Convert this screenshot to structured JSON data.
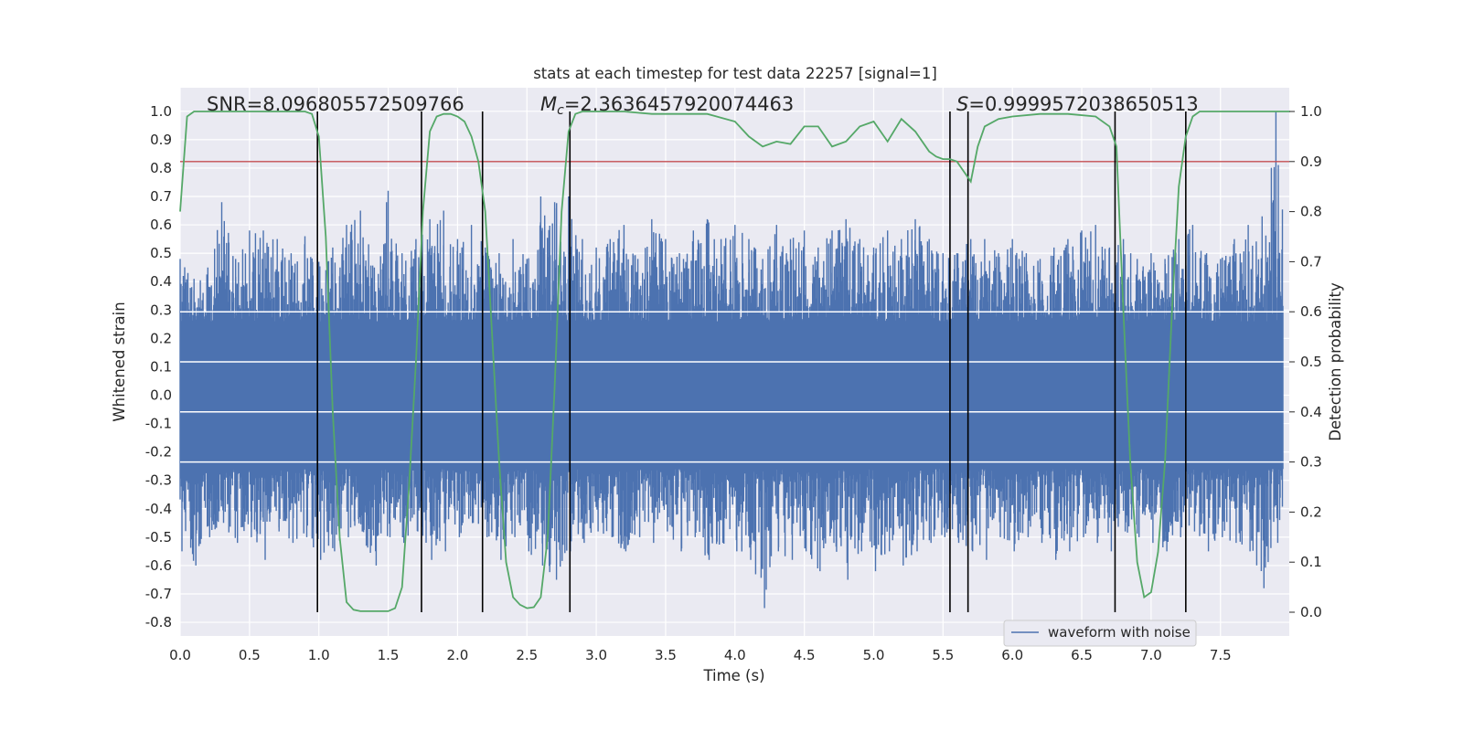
{
  "chart_data": {
    "type": "line",
    "title": "stats at each timestep for test data 22257 [signal=1]",
    "xlabel": "Time (s)",
    "ylabel_left": "Whitened strain",
    "ylabel_right": "Detection probability",
    "xlim": [
      0.0,
      8.0
    ],
    "ylim_left": [
      -0.85,
      1.08
    ],
    "ylim_right": [
      0.0,
      1.0
    ],
    "x_ticks": [
      "0.0",
      "0.5",
      "1.0",
      "1.5",
      "2.0",
      "2.5",
      "3.0",
      "3.5",
      "4.0",
      "4.5",
      "5.0",
      "5.5",
      "6.0",
      "6.5",
      "7.0",
      "7.5"
    ],
    "y_left_ticks": [
      "-0.8",
      "-0.7",
      "-0.6",
      "-0.5",
      "-0.4",
      "-0.3",
      "-0.2",
      "-0.1",
      "0.0",
      "0.1",
      "0.2",
      "0.3",
      "0.4",
      "0.5",
      "0.6",
      "0.7",
      "0.8",
      "0.9",
      "1.0"
    ],
    "y_right_ticks": [
      "0.0",
      "0.1",
      "0.2",
      "0.3",
      "0.4",
      "0.5",
      "0.6",
      "0.7",
      "0.8",
      "0.9",
      "1.0"
    ],
    "grid": true,
    "legend_placement": "lower-right",
    "annotations": {
      "snr": "SNR=8.096805572509766",
      "mc_symbol": "M",
      "mc_sub": "c",
      "mc_value": "=2.3636457920074463",
      "s_symbol": "S",
      "s_value": "=0.9999572038650513"
    },
    "series": [
      {
        "name": "waveform with noise",
        "axis": "left",
        "color": "#4c72b0",
        "description_values": "noise envelope",
        "upper_envelope": [
          [
            0.0,
            0.48
          ],
          [
            0.1,
            0.41
          ],
          [
            0.2,
            0.45
          ],
          [
            0.3,
            0.68
          ],
          [
            0.4,
            0.48
          ],
          [
            0.5,
            0.58
          ],
          [
            0.6,
            0.58
          ],
          [
            0.7,
            0.55
          ],
          [
            0.8,
            0.5
          ],
          [
            0.9,
            0.56
          ],
          [
            1.0,
            0.47
          ],
          [
            1.1,
            0.52
          ],
          [
            1.2,
            0.6
          ],
          [
            1.3,
            0.65
          ],
          [
            1.4,
            0.45
          ],
          [
            1.5,
            0.72
          ],
          [
            1.6,
            0.5
          ],
          [
            1.7,
            0.55
          ],
          [
            1.8,
            0.62
          ],
          [
            1.9,
            0.65
          ],
          [
            2.0,
            0.55
          ],
          [
            2.1,
            0.6
          ],
          [
            2.2,
            0.52
          ],
          [
            2.3,
            0.5
          ],
          [
            2.4,
            0.55
          ],
          [
            2.5,
            0.48
          ],
          [
            2.6,
            0.7
          ],
          [
            2.7,
            0.68
          ],
          [
            2.8,
            0.7
          ],
          [
            2.9,
            0.55
          ],
          [
            3.0,
            0.52
          ],
          [
            3.1,
            0.55
          ],
          [
            3.2,
            0.6
          ],
          [
            3.3,
            0.48
          ],
          [
            3.4,
            0.62
          ],
          [
            3.5,
            0.55
          ],
          [
            3.6,
            0.5
          ],
          [
            3.7,
            0.58
          ],
          [
            3.8,
            0.62
          ],
          [
            3.9,
            0.55
          ],
          [
            4.0,
            0.6
          ],
          [
            4.1,
            0.55
          ],
          [
            4.2,
            0.48
          ],
          [
            4.3,
            0.6
          ],
          [
            4.4,
            0.55
          ],
          [
            4.5,
            0.58
          ],
          [
            4.6,
            0.52
          ],
          [
            4.7,
            0.58
          ],
          [
            4.8,
            0.62
          ],
          [
            4.9,
            0.55
          ],
          [
            5.0,
            0.52
          ],
          [
            5.1,
            0.58
          ],
          [
            5.2,
            0.55
          ],
          [
            5.3,
            0.62
          ],
          [
            5.4,
            0.55
          ],
          [
            5.5,
            0.5
          ],
          [
            5.6,
            0.5
          ],
          [
            5.7,
            0.55
          ],
          [
            5.8,
            0.55
          ],
          [
            5.9,
            0.5
          ],
          [
            6.0,
            0.55
          ],
          [
            6.1,
            0.5
          ],
          [
            6.2,
            0.48
          ],
          [
            6.3,
            0.52
          ],
          [
            6.4,
            0.55
          ],
          [
            6.5,
            0.58
          ],
          [
            6.6,
            0.6
          ],
          [
            6.7,
            0.52
          ],
          [
            6.8,
            0.55
          ],
          [
            6.9,
            0.48
          ],
          [
            7.0,
            0.5
          ],
          [
            7.1,
            0.48
          ],
          [
            7.2,
            0.55
          ],
          [
            7.3,
            0.6
          ],
          [
            7.4,
            0.5
          ],
          [
            7.5,
            0.48
          ],
          [
            7.6,
            0.55
          ],
          [
            7.7,
            0.6
          ],
          [
            7.8,
            0.63
          ],
          [
            7.9,
            1.0
          ],
          [
            8.0,
            0.4
          ]
        ],
        "lower_envelope": [
          [
            0.0,
            -0.55
          ],
          [
            0.1,
            -0.6
          ],
          [
            0.2,
            -0.5
          ],
          [
            0.3,
            -0.45
          ],
          [
            0.4,
            -0.52
          ],
          [
            0.5,
            -0.5
          ],
          [
            0.6,
            -0.58
          ],
          [
            0.7,
            -0.48
          ],
          [
            0.8,
            -0.52
          ],
          [
            0.9,
            -0.5
          ],
          [
            1.0,
            -0.58
          ],
          [
            1.1,
            -0.55
          ],
          [
            1.2,
            -0.5
          ],
          [
            1.3,
            -0.48
          ],
          [
            1.4,
            -0.6
          ],
          [
            1.5,
            -0.5
          ],
          [
            1.6,
            -0.52
          ],
          [
            1.7,
            -0.48
          ],
          [
            1.8,
            -0.58
          ],
          [
            1.9,
            -0.55
          ],
          [
            2.0,
            -0.5
          ],
          [
            2.1,
            -0.45
          ],
          [
            2.2,
            -0.5
          ],
          [
            2.3,
            -0.58
          ],
          [
            2.4,
            -0.5
          ],
          [
            2.5,
            -0.55
          ],
          [
            2.6,
            -0.6
          ],
          [
            2.7,
            -0.65
          ],
          [
            2.8,
            -0.55
          ],
          [
            2.9,
            -0.52
          ],
          [
            3.0,
            -0.48
          ],
          [
            3.1,
            -0.5
          ],
          [
            3.2,
            -0.55
          ],
          [
            3.3,
            -0.5
          ],
          [
            3.4,
            -0.52
          ],
          [
            3.5,
            -0.48
          ],
          [
            3.6,
            -0.55
          ],
          [
            3.7,
            -0.5
          ],
          [
            3.8,
            -0.58
          ],
          [
            3.9,
            -0.52
          ],
          [
            4.0,
            -0.55
          ],
          [
            4.1,
            -0.58
          ],
          [
            4.2,
            -0.75
          ],
          [
            4.3,
            -0.55
          ],
          [
            4.4,
            -0.58
          ],
          [
            4.5,
            -0.55
          ],
          [
            4.6,
            -0.62
          ],
          [
            4.7,
            -0.52
          ],
          [
            4.8,
            -0.65
          ],
          [
            4.9,
            -0.55
          ],
          [
            5.0,
            -0.62
          ],
          [
            5.1,
            -0.55
          ],
          [
            5.2,
            -0.6
          ],
          [
            5.3,
            -0.55
          ],
          [
            5.4,
            -0.52
          ],
          [
            5.5,
            -0.5
          ],
          [
            5.6,
            -0.52
          ],
          [
            5.7,
            -0.55
          ],
          [
            5.8,
            -0.58
          ],
          [
            5.9,
            -0.5
          ],
          [
            6.0,
            -0.55
          ],
          [
            6.1,
            -0.5
          ],
          [
            6.2,
            -0.52
          ],
          [
            6.3,
            -0.58
          ],
          [
            6.4,
            -0.55
          ],
          [
            6.5,
            -0.5
          ],
          [
            6.6,
            -0.52
          ],
          [
            6.7,
            -0.55
          ],
          [
            6.8,
            -0.48
          ],
          [
            6.9,
            -0.5
          ],
          [
            7.0,
            -0.52
          ],
          [
            7.1,
            -0.55
          ],
          [
            7.2,
            -0.5
          ],
          [
            7.3,
            -0.48
          ],
          [
            7.4,
            -0.55
          ],
          [
            7.5,
            -0.5
          ],
          [
            7.6,
            -0.52
          ],
          [
            7.7,
            -0.55
          ],
          [
            7.8,
            -0.68
          ],
          [
            7.9,
            -0.52
          ],
          [
            8.0,
            -0.45
          ]
        ]
      },
      {
        "name": "",
        "axis": "right",
        "color": "#55a868",
        "x": [
          0.0,
          0.05,
          0.1,
          0.2,
          0.3,
          0.4,
          0.5,
          0.6,
          0.7,
          0.8,
          0.9,
          0.95,
          1.0,
          1.05,
          1.1,
          1.15,
          1.2,
          1.25,
          1.3,
          1.4,
          1.5,
          1.55,
          1.6,
          1.65,
          1.7,
          1.75,
          1.8,
          1.85,
          1.9,
          1.95,
          2.0,
          2.05,
          2.1,
          2.15,
          2.2,
          2.25,
          2.3,
          2.35,
          2.4,
          2.45,
          2.5,
          2.55,
          2.6,
          2.65,
          2.7,
          2.75,
          2.8,
          2.85,
          2.9,
          2.95,
          3.0,
          3.2,
          3.4,
          3.6,
          3.8,
          4.0,
          4.1,
          4.2,
          4.3,
          4.4,
          4.5,
          4.6,
          4.7,
          4.8,
          4.9,
          5.0,
          5.1,
          5.2,
          5.3,
          5.4,
          5.45,
          5.5,
          5.55,
          5.6,
          5.65,
          5.7,
          5.75,
          5.8,
          5.9,
          6.0,
          6.2,
          6.4,
          6.6,
          6.7,
          6.75,
          6.8,
          6.85,
          6.9,
          6.95,
          7.0,
          7.05,
          7.1,
          7.15,
          7.2,
          7.25,
          7.3,
          7.35,
          7.4,
          7.6,
          7.8,
          8.0
        ],
        "values": [
          0.8,
          0.99,
          1.0,
          1.0,
          1.0,
          1.0,
          1.0,
          1.0,
          1.0,
          1.0,
          1.0,
          0.995,
          0.95,
          0.75,
          0.4,
          0.15,
          0.02,
          0.005,
          0.002,
          0.002,
          0.002,
          0.008,
          0.05,
          0.25,
          0.5,
          0.8,
          0.96,
          0.99,
          0.995,
          0.995,
          0.99,
          0.98,
          0.95,
          0.9,
          0.8,
          0.55,
          0.3,
          0.1,
          0.03,
          0.015,
          0.008,
          0.01,
          0.03,
          0.15,
          0.45,
          0.8,
          0.96,
          0.995,
          1.0,
          1.0,
          1.0,
          1.0,
          0.995,
          0.995,
          0.995,
          0.98,
          0.95,
          0.93,
          0.94,
          0.935,
          0.97,
          0.97,
          0.93,
          0.94,
          0.97,
          0.98,
          0.94,
          0.985,
          0.96,
          0.92,
          0.91,
          0.905,
          0.905,
          0.9,
          0.88,
          0.86,
          0.93,
          0.97,
          0.985,
          0.99,
          0.995,
          0.995,
          0.99,
          0.97,
          0.93,
          0.6,
          0.3,
          0.1,
          0.03,
          0.04,
          0.12,
          0.3,
          0.6,
          0.85,
          0.95,
          0.99,
          1.0,
          1.0,
          1.0,
          1.0,
          1.0
        ]
      }
    ],
    "threshold_line": {
      "axis": "right",
      "value": 0.9,
      "color": "#c44e52"
    },
    "vertical_markers": {
      "x": [
        0.99,
        1.74,
        2.18,
        2.81,
        5.55,
        5.68,
        6.74,
        7.25
      ],
      "y_range_right": [
        0.0,
        1.0
      ],
      "color": "#000000"
    }
  },
  "legend": {
    "label": "waveform with noise"
  }
}
